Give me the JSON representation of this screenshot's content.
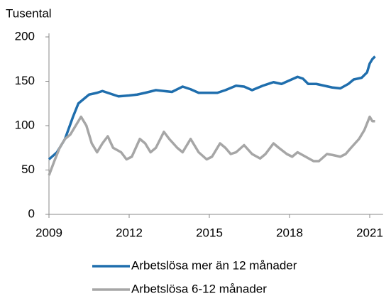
{
  "chart_data": {
    "type": "line",
    "y_label": "Tusental",
    "xlim": [
      2009,
      2021.5
    ],
    "xticks": [
      2009,
      2012,
      2015,
      2018,
      2021
    ],
    "ylim": [
      0,
      200
    ],
    "yticks": [
      0,
      50,
      100,
      150,
      200
    ],
    "grid": false,
    "legend": "bottom",
    "series": [
      {
        "name": "Arbetslösa mer än 12 månader",
        "color": "#1f6ead",
        "x": [
          2009.0,
          2009.3,
          2009.6,
          2009.9,
          2010.1,
          2010.3,
          2010.5,
          2010.8,
          2011.0,
          2011.3,
          2011.6,
          2012.0,
          2012.3,
          2012.6,
          2013.0,
          2013.3,
          2013.6,
          2014.0,
          2014.3,
          2014.6,
          2015.0,
          2015.3,
          2015.6,
          2016.0,
          2016.3,
          2016.6,
          2017.0,
          2017.4,
          2017.7,
          2018.0,
          2018.3,
          2018.5,
          2018.7,
          2019.0,
          2019.3,
          2019.6,
          2019.9,
          2020.2,
          2020.4,
          2020.7,
          2020.9,
          2021.0,
          2021.1,
          2021.2
        ],
        "values": [
          62,
          70,
          85,
          110,
          125,
          130,
          135,
          137,
          139,
          136,
          133,
          134,
          135,
          137,
          140,
          139,
          138,
          144,
          141,
          137,
          137,
          137,
          140,
          145,
          144,
          140,
          145,
          149,
          147,
          151,
          155,
          153,
          147,
          147,
          145,
          143,
          142,
          147,
          152,
          154,
          160,
          170,
          175,
          178
        ]
      },
      {
        "name": "Arbetslösa 6-12 månader",
        "color": "#a6a6a6",
        "x": [
          2009.0,
          2009.2,
          2009.4,
          2009.6,
          2009.8,
          2010.0,
          2010.2,
          2010.4,
          2010.6,
          2010.8,
          2011.0,
          2011.2,
          2011.4,
          2011.7,
          2011.9,
          2012.1,
          2012.4,
          2012.6,
          2012.8,
          2013.0,
          2013.3,
          2013.5,
          2013.8,
          2014.0,
          2014.3,
          2014.6,
          2014.9,
          2015.1,
          2015.4,
          2015.6,
          2015.8,
          2016.0,
          2016.3,
          2016.6,
          2016.9,
          2017.1,
          2017.4,
          2017.6,
          2017.9,
          2018.1,
          2018.3,
          2018.6,
          2018.9,
          2019.1,
          2019.4,
          2019.6,
          2019.9,
          2020.1,
          2020.3,
          2020.6,
          2020.8,
          2021.0,
          2021.1,
          2021.2
        ],
        "values": [
          44,
          60,
          75,
          85,
          90,
          100,
          110,
          100,
          80,
          70,
          80,
          88,
          75,
          70,
          62,
          65,
          85,
          80,
          70,
          75,
          93,
          85,
          75,
          70,
          85,
          70,
          62,
          65,
          80,
          75,
          68,
          70,
          78,
          68,
          63,
          68,
          80,
          75,
          68,
          65,
          70,
          65,
          60,
          60,
          68,
          67,
          65,
          68,
          75,
          85,
          95,
          110,
          105,
          105
        ]
      }
    ]
  }
}
